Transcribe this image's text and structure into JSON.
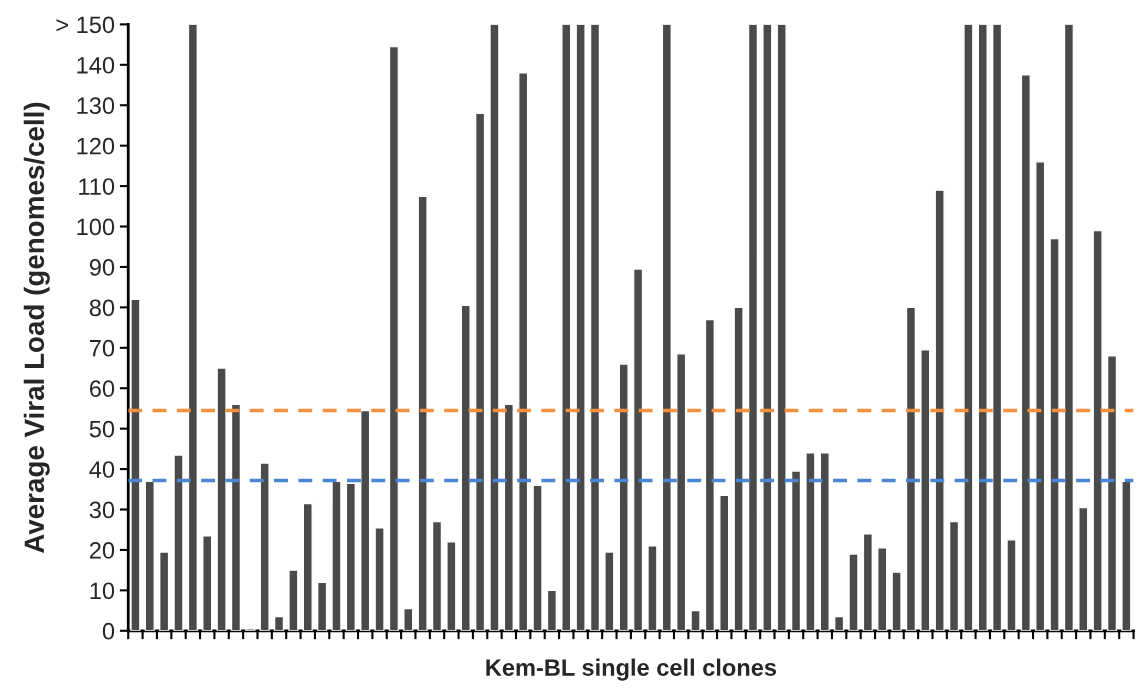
{
  "chart_data": {
    "type": "bar",
    "xlabel": "Kem-BL single cell clones",
    "ylabel": "Average Viral Load (genomes/cell)",
    "categories": [
      null,
      null,
      null,
      null,
      null,
      null,
      null,
      null,
      null,
      null,
      null,
      null,
      null,
      null,
      null,
      null,
      null,
      null,
      null,
      null,
      null,
      null,
      null,
      null,
      null,
      null,
      null,
      null,
      null,
      null,
      null,
      null,
      null,
      null,
      null,
      null,
      null,
      null,
      null,
      null,
      null,
      null,
      null,
      null,
      null,
      null,
      null,
      null,
      null,
      null,
      null,
      null,
      null,
      null,
      null,
      null,
      null,
      null,
      null,
      null,
      null,
      null,
      null,
      null,
      null,
      null,
      null,
      null,
      null,
      null
    ],
    "values": [
      82,
      37,
      19.5,
      43.5,
      150,
      23.5,
      65,
      56,
      0.5,
      41.5,
      3.5,
      15,
      31.5,
      12,
      37,
      36.5,
      54.5,
      25.5,
      144.5,
      5.5,
      107.5,
      27,
      22,
      80.5,
      128,
      150,
      56,
      138,
      36,
      10,
      150,
      150,
      150,
      19.5,
      66,
      89.5,
      21,
      150,
      68.5,
      5,
      77,
      33.5,
      80,
      150,
      150,
      150,
      39.5,
      44,
      44,
      3.5,
      19,
      24,
      20.5,
      14.5,
      80,
      69.5,
      109,
      27,
      150,
      150,
      150,
      22.5,
      137.5,
      116,
      97,
      150,
      30.5,
      99,
      68,
      37
    ],
    "color": "#4a4a4a",
    "ylim": [
      0,
      150
    ],
    "yticks": [
      0,
      10,
      20,
      30,
      40,
      50,
      60,
      70,
      80,
      90,
      100,
      110,
      120,
      130,
      140,
      {
        "value": 150,
        "label": "> 150"
      }
    ],
    "ref_lines": [
      {
        "axis": "y",
        "value": 54.5,
        "color": "#f4913f",
        "line_style": "dashed"
      },
      {
        "axis": "y",
        "value": 37.2,
        "color": "#4a86d4",
        "line_style": "dashed"
      }
    ],
    "tick_labels": "y",
    "grid": false
  }
}
